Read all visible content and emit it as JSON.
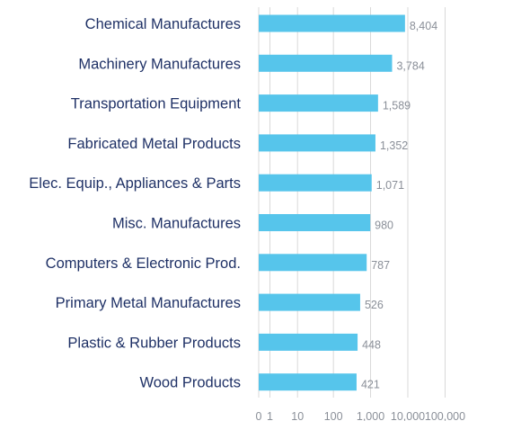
{
  "chart_data": {
    "type": "bar",
    "orientation": "horizontal",
    "x_scale": "log10(1+x)",
    "categories": [
      "Chemical Manufactures",
      "Machinery Manufactures",
      "Transportation Equipment",
      "Fabricated Metal Products",
      "Elec. Equip., Appliances & Parts",
      "Misc. Manufactures",
      "Computers & Electronic Prod.",
      "Primary Metal Manufactures",
      "Plastic & Rubber Products",
      "Wood Products"
    ],
    "values": [
      8404,
      3784,
      1589,
      1352,
      1071,
      980,
      787,
      526,
      448,
      421
    ],
    "value_labels": [
      "8,404",
      "3,784",
      "1,589",
      "1,352",
      "1,071",
      "980",
      "787",
      "526",
      "448",
      "421"
    ],
    "ticks": [
      0,
      1,
      10,
      100,
      1000,
      10000,
      100000
    ],
    "tick_labels": [
      "0",
      "1",
      "10",
      "100",
      "1,000",
      "10,000",
      "100,000"
    ],
    "xlim": [
      0,
      100000
    ],
    "grid": true,
    "bar_color": "#56c5eb"
  }
}
